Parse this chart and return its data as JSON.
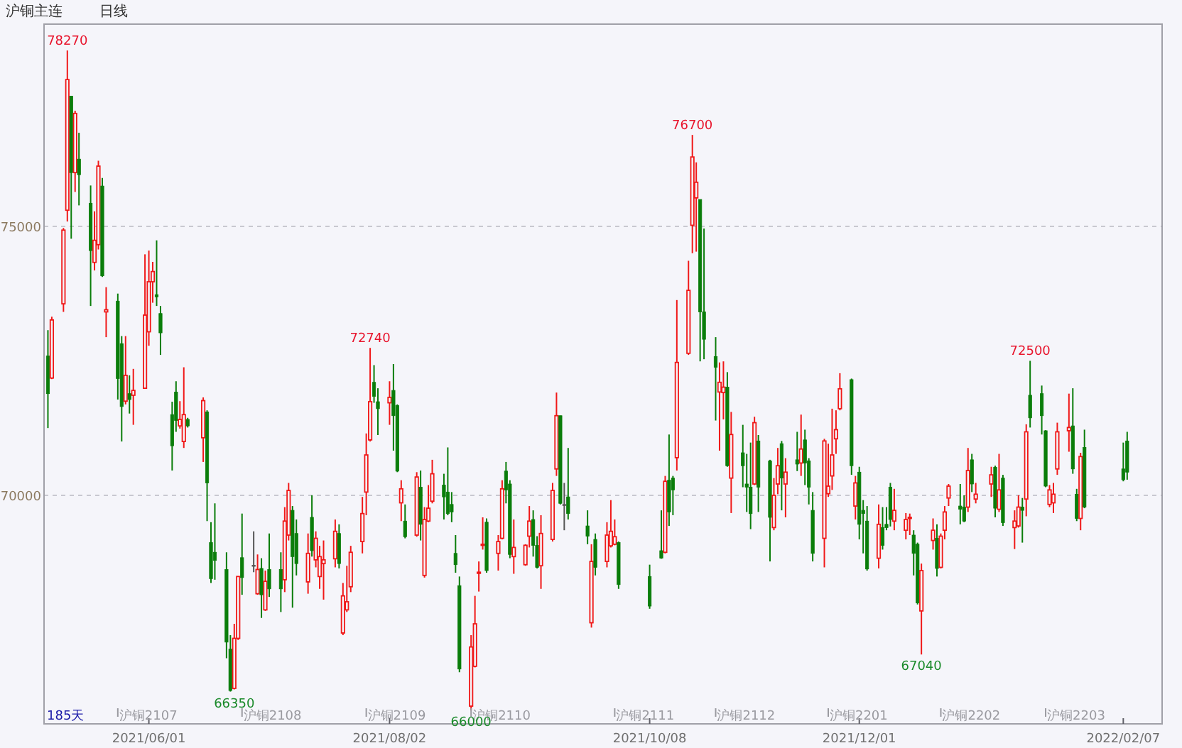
{
  "chart_data": {
    "type": "candlestick",
    "title": "沪铜主连",
    "subtitle": "日线",
    "x": [
      "2021-05-06",
      "2021-05-07",
      "2021-05-10",
      "2021-05-11",
      "2021-05-12",
      "2021-05-13",
      "2021-05-14",
      "2021-05-17",
      "2021-05-18",
      "2021-05-19",
      "2021-05-20",
      "2021-05-21",
      "2021-05-24",
      "2021-05-25",
      "2021-05-26",
      "2021-05-27",
      "2021-05-28",
      "2021-05-31",
      "2021-06-01",
      "2021-06-02",
      "2021-06-03",
      "2021-06-04",
      "2021-06-07",
      "2021-06-08",
      "2021-06-09",
      "2021-06-10",
      "2021-06-11",
      "2021-06-15",
      "2021-06-16",
      "2021-06-17",
      "2021-06-18",
      "2021-06-21",
      "2021-06-22",
      "2021-06-23",
      "2021-06-24",
      "2021-06-25",
      "2021-06-28",
      "2021-06-29",
      "2021-06-30",
      "2021-07-01",
      "2021-07-02",
      "2021-07-05",
      "2021-07-06",
      "2021-07-07",
      "2021-07-08",
      "2021-07-09",
      "2021-07-12",
      "2021-07-13",
      "2021-07-14",
      "2021-07-15",
      "2021-07-16",
      "2021-07-19",
      "2021-07-20",
      "2021-07-21",
      "2021-07-22",
      "2021-07-23",
      "2021-07-26",
      "2021-07-27",
      "2021-07-28",
      "2021-07-29",
      "2021-07-30",
      "2021-08-02",
      "2021-08-03",
      "2021-08-04",
      "2021-08-05",
      "2021-08-06",
      "2021-08-09",
      "2021-08-10",
      "2021-08-11",
      "2021-08-12",
      "2021-08-13",
      "2021-08-16",
      "2021-08-17",
      "2021-08-18",
      "2021-08-19",
      "2021-08-20",
      "2021-08-23",
      "2021-08-24",
      "2021-08-25",
      "2021-08-26",
      "2021-08-27",
      "2021-08-30",
      "2021-08-31",
      "2021-09-01",
      "2021-09-02",
      "2021-09-03",
      "2021-09-06",
      "2021-09-07",
      "2021-09-08",
      "2021-09-09",
      "2021-09-10",
      "2021-09-13",
      "2021-09-14",
      "2021-09-15",
      "2021-09-16",
      "2021-09-17",
      "2021-09-22",
      "2021-09-23",
      "2021-09-24",
      "2021-09-27",
      "2021-09-28",
      "2021-09-29",
      "2021-09-30",
      "2021-10-08",
      "2021-10-11",
      "2021-10-12",
      "2021-10-13",
      "2021-10-14",
      "2021-10-15",
      "2021-10-18",
      "2021-10-19",
      "2021-10-20",
      "2021-10-21",
      "2021-10-22",
      "2021-10-25",
      "2021-10-26",
      "2021-10-27",
      "2021-10-28",
      "2021-10-29",
      "2021-11-01",
      "2021-11-02",
      "2021-11-03",
      "2021-11-04",
      "2021-11-05",
      "2021-11-08",
      "2021-11-09",
      "2021-11-10",
      "2021-11-11",
      "2021-11-12",
      "2021-11-15",
      "2021-11-16",
      "2021-11-17",
      "2021-11-18",
      "2021-11-19",
      "2021-11-22",
      "2021-11-23",
      "2021-11-24",
      "2021-11-25",
      "2021-11-26",
      "2021-11-29",
      "2021-11-30",
      "2021-12-01",
      "2021-12-02",
      "2021-12-03",
      "2021-12-06",
      "2021-12-07",
      "2021-12-08",
      "2021-12-09",
      "2021-12-10",
      "2021-12-13",
      "2021-12-14",
      "2021-12-15",
      "2021-12-16",
      "2021-12-17",
      "2021-12-20",
      "2021-12-21",
      "2021-12-22",
      "2021-12-23",
      "2021-12-24",
      "2021-12-27",
      "2021-12-28",
      "2021-12-29",
      "2021-12-30",
      "2021-12-31",
      "2022-01-04",
      "2022-01-05",
      "2022-01-06",
      "2022-01-07",
      "2022-01-10",
      "2022-01-11",
      "2022-01-12",
      "2022-01-13",
      "2022-01-14",
      "2022-01-17",
      "2022-01-18",
      "2022-01-19",
      "2022-01-20",
      "2022-01-21",
      "2022-01-24",
      "2022-01-25",
      "2022-01-26",
      "2022-01-27",
      "2022-01-28",
      "2022-02-07",
      "2022-02-08"
    ],
    "ohlc": [
      [
        72590,
        73070,
        71250,
        71890
      ],
      [
        72180,
        73320,
        72160,
        73260
      ],
      [
        73560,
        74970,
        73410,
        74930
      ],
      [
        75300,
        78270,
        75090,
        77730
      ],
      [
        77420,
        77420,
        74770,
        76000
      ],
      [
        76000,
        77150,
        75640,
        77100
      ],
      [
        76250,
        76740,
        75390,
        75960
      ],
      [
        75430,
        75760,
        73520,
        74550
      ],
      [
        74330,
        75280,
        74180,
        74740
      ],
      [
        74660,
        76220,
        74570,
        76120
      ],
      [
        75750,
        75900,
        74060,
        74080
      ],
      [
        73410,
        73870,
        72940,
        73450
      ],
      [
        73610,
        73750,
        71780,
        72170
      ],
      [
        72820,
        72960,
        71000,
        71650
      ],
      [
        71750,
        72960,
        71690,
        72230
      ],
      [
        71890,
        72230,
        71520,
        71780
      ],
      [
        71860,
        72350,
        71310,
        71950
      ],
      [
        71990,
        74480,
        71980,
        73350
      ],
      [
        73040,
        74550,
        72780,
        73970
      ],
      [
        73970,
        74340,
        73580,
        74160
      ],
      [
        73730,
        74740,
        73520,
        73690
      ],
      [
        73380,
        73520,
        72610,
        73020
      ],
      [
        71500,
        71740,
        70460,
        70920
      ],
      [
        71920,
        72120,
        71180,
        71390
      ],
      [
        71290,
        71750,
        71240,
        71410
      ],
      [
        71000,
        72380,
        70880,
        71500
      ],
      [
        71410,
        71440,
        71260,
        71290
      ],
      [
        71070,
        71820,
        70620,
        71760
      ],
      [
        71550,
        71580,
        69520,
        70230
      ],
      [
        69120,
        69500,
        68370,
        68450
      ],
      [
        68940,
        69850,
        68430,
        68790
      ],
      [
        68620,
        68940,
        66970,
        67270
      ],
      [
        67140,
        67400,
        66350,
        66370
      ],
      [
        66410,
        67610,
        66390,
        67340
      ],
      [
        67340,
        68490,
        67310,
        68490
      ],
      [
        68840,
        69660,
        68150,
        68470
      ],
      [
        68700,
        69330,
        68570,
        68700
      ],
      [
        68170,
        68900,
        68150,
        68620
      ],
      [
        68640,
        68830,
        67720,
        68150
      ],
      [
        67870,
        68600,
        67850,
        68400
      ],
      [
        68620,
        69290,
        68110,
        68260
      ],
      [
        68620,
        68940,
        67830,
        68260
      ],
      [
        68430,
        69780,
        68200,
        69520
      ],
      [
        69260,
        70230,
        69160,
        70090
      ],
      [
        69720,
        69800,
        67910,
        68860
      ],
      [
        69290,
        69550,
        68510,
        68730
      ],
      [
        68390,
        69290,
        68170,
        68920
      ],
      [
        69590,
        70000,
        68860,
        68970
      ],
      [
        68800,
        69330,
        68660,
        69200
      ],
      [
        68490,
        69060,
        68260,
        68860
      ],
      [
        68730,
        69160,
        68060,
        68800
      ],
      [
        68820,
        69550,
        68660,
        69330
      ],
      [
        69290,
        69460,
        68640,
        68730
      ],
      [
        67440,
        68370,
        67400,
        68130
      ],
      [
        67870,
        68690,
        67830,
        68020
      ],
      [
        68300,
        69060,
        68200,
        68940
      ],
      [
        69140,
        69970,
        68920,
        69660
      ],
      [
        70060,
        71150,
        69630,
        70750
      ],
      [
        71030,
        72740,
        71000,
        71740
      ],
      [
        72100,
        72420,
        71720,
        71840
      ],
      [
        71740,
        71990,
        71120,
        71610
      ],
      [
        71720,
        72120,
        71310,
        71820
      ],
      [
        71950,
        72440,
        70830,
        71480
      ],
      [
        71670,
        71690,
        70430,
        70450
      ],
      [
        69860,
        70280,
        69520,
        70120
      ],
      [
        69520,
        69830,
        69200,
        69230
      ],
      [
        69260,
        70430,
        69230,
        70340
      ],
      [
        70150,
        70460,
        69160,
        69460
      ],
      [
        68510,
        69780,
        68470,
        69550
      ],
      [
        69520,
        70190,
        69500,
        69760
      ],
      [
        69890,
        70660,
        69850,
        70400
      ],
      [
        70190,
        70400,
        69550,
        69970
      ],
      [
        70060,
        70890,
        69630,
        69660
      ],
      [
        69830,
        70060,
        69500,
        69690
      ],
      [
        68920,
        69260,
        68560,
        68710
      ],
      [
        68320,
        68490,
        66710,
        66770
      ],
      [
        66080,
        67400,
        66000,
        67180
      ],
      [
        66820,
        68130,
        66800,
        67610
      ],
      [
        68560,
        68770,
        68210,
        68570
      ],
      [
        69070,
        69590,
        68990,
        69090
      ],
      [
        69500,
        69570,
        68560,
        68600
      ],
      [
        68920,
        69260,
        68600,
        69140
      ],
      [
        69200,
        70280,
        69180,
        70120
      ],
      [
        70450,
        70620,
        69850,
        70100
      ],
      [
        70210,
        70280,
        68830,
        68900
      ],
      [
        68860,
        69550,
        68540,
        69030
      ],
      [
        68710,
        69090,
        68690,
        69070
      ],
      [
        69240,
        69800,
        69030,
        69520
      ],
      [
        69550,
        69720,
        68860,
        69070
      ],
      [
        69070,
        69240,
        68640,
        68660
      ],
      [
        68690,
        69630,
        68260,
        69290
      ],
      [
        69180,
        70230,
        69140,
        70090
      ],
      [
        70490,
        71910,
        70360,
        71480
      ],
      [
        71480,
        71480,
        69830,
        69850
      ],
      [
        69830,
        70230,
        69350,
        69830
      ],
      [
        69970,
        70880,
        69550,
        69660
      ],
      [
        69430,
        69720,
        69090,
        69240
      ],
      [
        67630,
        69090,
        67540,
        68770
      ],
      [
        69180,
        69290,
        68510,
        68660
      ],
      [
        68770,
        69500,
        68660,
        69260
      ],
      [
        69060,
        69910,
        69030,
        69330
      ],
      [
        69090,
        69550,
        69070,
        69230
      ],
      [
        69120,
        69140,
        68260,
        68340
      ],
      [
        68490,
        68710,
        67890,
        67940
      ],
      [
        68970,
        69720,
        68820,
        68830
      ],
      [
        68940,
        70360,
        68920,
        70260
      ],
      [
        70280,
        71130,
        69430,
        69690
      ],
      [
        70320,
        70360,
        69630,
        70100
      ],
      [
        70700,
        73630,
        70460,
        72470
      ],
      [
        72640,
        74360,
        72610,
        73810
      ],
      [
        75020,
        76700,
        74500,
        76290
      ],
      [
        75530,
        76190,
        74530,
        75820
      ],
      [
        75500,
        75500,
        72490,
        73410
      ],
      [
        73410,
        74960,
        72530,
        72900
      ],
      [
        72580,
        72940,
        71390,
        72380
      ],
      [
        71920,
        72470,
        70830,
        72100
      ],
      [
        71910,
        72490,
        71410,
        72010
      ],
      [
        72010,
        72290,
        70530,
        70550
      ],
      [
        70320,
        71550,
        69670,
        71130
      ],
      [
        70790,
        71310,
        70150,
        70550
      ],
      [
        70210,
        70770,
        69690,
        70150
      ],
      [
        70150,
        70980,
        69370,
        69660
      ],
      [
        70210,
        71460,
        70190,
        71350
      ],
      [
        71010,
        71120,
        69690,
        70150
      ],
      [
        70640,
        70660,
        68770,
        69590
      ],
      [
        69400,
        70320,
        69350,
        70000
      ],
      [
        70210,
        70880,
        70020,
        70550
      ],
      [
        70960,
        71010,
        69720,
        70320
      ],
      [
        70210,
        70690,
        69590,
        70430
      ],
      [
        70660,
        71180,
        70450,
        70580
      ],
      [
        70600,
        71500,
        70360,
        70860
      ],
      [
        71030,
        71220,
        70190,
        70600
      ],
      [
        70640,
        70690,
        69830,
        70150
      ],
      [
        69720,
        70060,
        68770,
        68920
      ],
      [
        69200,
        71050,
        68660,
        71010
      ],
      [
        70030,
        70960,
        69970,
        70170
      ],
      [
        70360,
        71610,
        70100,
        70750
      ],
      [
        71050,
        71580,
        70770,
        71220
      ],
      [
        71610,
        72270,
        71580,
        71980
      ],
      [
        72150,
        72170,
        70380,
        70550
      ],
      [
        69800,
        70360,
        69550,
        70230
      ],
      [
        70430,
        70530,
        69180,
        69460
      ],
      [
        69720,
        69910,
        68920,
        69660
      ],
      [
        69520,
        69800,
        68600,
        68630
      ],
      [
        68830,
        69830,
        68640,
        69460
      ],
      [
        69400,
        69780,
        68990,
        69070
      ],
      [
        69460,
        69780,
        69350,
        69400
      ],
      [
        70150,
        70230,
        69420,
        69550
      ],
      [
        69520,
        70120,
        69350,
        69720
      ],
      [
        69350,
        69670,
        69180,
        69550
      ],
      [
        69570,
        69660,
        69260,
        69590
      ],
      [
        69260,
        69350,
        68510,
        68920
      ],
      [
        69090,
        69120,
        67970,
        68000
      ],
      [
        67850,
        68730,
        67040,
        68600
      ],
      [
        69160,
        69570,
        68990,
        69350
      ],
      [
        69200,
        69460,
        68490,
        68640
      ],
      [
        68660,
        69290,
        68640,
        69240
      ],
      [
        69350,
        69800,
        69180,
        69690
      ],
      [
        69950,
        70210,
        69800,
        70170
      ],
      [
        69800,
        70210,
        69460,
        69740
      ],
      [
        69780,
        70000,
        69500,
        69520
      ],
      [
        69780,
        70880,
        69690,
        70460
      ],
      [
        70660,
        70770,
        70060,
        70210
      ],
      [
        69930,
        70230,
        69850,
        70020
      ],
      [
        70210,
        70530,
        69970,
        70380
      ],
      [
        70520,
        70550,
        69590,
        69760
      ],
      [
        69740,
        70770,
        69690,
        70100
      ],
      [
        70320,
        70380,
        69430,
        69490
      ],
      [
        69400,
        69720,
        69000,
        69520
      ],
      [
        69430,
        70000,
        69400,
        69780
      ],
      [
        69780,
        69950,
        69120,
        69720
      ],
      [
        69930,
        71320,
        69610,
        71180
      ],
      [
        71860,
        72500,
        71260,
        71440
      ],
      [
        71890,
        72040,
        71130,
        71480
      ],
      [
        71200,
        71210,
        70150,
        70170
      ],
      [
        69830,
        70190,
        69780,
        70100
      ],
      [
        69860,
        70230,
        69670,
        70020
      ],
      [
        70490,
        71350,
        70380,
        71180
      ],
      [
        71200,
        71890,
        70810,
        71260
      ],
      [
        71290,
        71990,
        70400,
        70490
      ],
      [
        70020,
        70120,
        69520,
        69570
      ],
      [
        69570,
        70790,
        69350,
        70720
      ],
      [
        70890,
        71220,
        69760,
        69780
      ],
      [
        70490,
        70980,
        70260,
        70290
      ],
      [
        71010,
        71180,
        70290,
        70430
      ]
    ],
    "colors": [
      "#0a7d0a",
      "#f01818",
      "#f01818",
      "#f01818",
      "#0a7d0a",
      "#f01818",
      "#0a7d0a",
      "#0a7d0a",
      "#f01818",
      "#f01818",
      "#0a7d0a",
      "#f01818",
      "#0a7d0a",
      "#0a7d0a",
      "#f01818",
      "#0a7d0a",
      "#f01818",
      "#f01818",
      "#f01818",
      "#f01818",
      "#0a7d0a",
      "#0a7d0a",
      "#0a7d0a",
      "#0a7d0a",
      "#f01818",
      "#f01818",
      "#0a7d0a",
      "#f01818",
      "#0a7d0a",
      "#0a7d0a",
      "#0a7d0a",
      "#0a7d0a",
      "#0a7d0a",
      "#f01818",
      "#f01818",
      "#0a7d0a",
      "#555555",
      "#f01818",
      "#0a7d0a",
      "#f01818",
      "#0a7d0a",
      "#0a7d0a",
      "#f01818",
      "#f01818",
      "#0a7d0a",
      "#0a7d0a",
      "#f01818",
      "#0a7d0a",
      "#f01818",
      "#f01818",
      "#f01818",
      "#f01818",
      "#0a7d0a",
      "#f01818",
      "#f01818",
      "#f01818",
      "#f01818",
      "#f01818",
      "#f01818",
      "#0a7d0a",
      "#0a7d0a",
      "#f01818",
      "#0a7d0a",
      "#0a7d0a",
      "#f01818",
      "#0a7d0a",
      "#f01818",
      "#0a7d0a",
      "#f01818",
      "#f01818",
      "#f01818",
      "#0a7d0a",
      "#0a7d0a",
      "#0a7d0a",
      "#0a7d0a",
      "#0a7d0a",
      "#f01818",
      "#f01818",
      "#f01818",
      "#f01818",
      "#0a7d0a",
      "#f01818",
      "#f01818",
      "#0a7d0a",
      "#0a7d0a",
      "#f01818",
      "#f01818",
      "#f01818",
      "#0a7d0a",
      "#0a7d0a",
      "#f01818",
      "#f01818",
      "#f01818",
      "#0a7d0a",
      "#555555",
      "#0a7d0a",
      "#0a7d0a",
      "#f01818",
      "#0a7d0a",
      "#f01818",
      "#f01818",
      "#f01818",
      "#0a7d0a",
      "#0a7d0a",
      "#0a7d0a",
      "#f01818",
      "#0a7d0a",
      "#0a7d0a",
      "#f01818",
      "#f01818",
      "#f01818",
      "#f01818",
      "#0a7d0a",
      "#0a7d0a",
      "#0a7d0a",
      "#f01818",
      "#f01818",
      "#0a7d0a",
      "#f01818",
      "#0a7d0a",
      "#0a7d0a",
      "#0a7d0a",
      "#f01818",
      "#0a7d0a",
      "#0a7d0a",
      "#f01818",
      "#f01818",
      "#0a7d0a",
      "#f01818",
      "#0a7d0a",
      "#f01818",
      "#0a7d0a",
      "#0a7d0a",
      "#0a7d0a",
      "#f01818",
      "#f01818",
      "#f01818",
      "#f01818",
      "#f01818",
      "#0a7d0a",
      "#f01818",
      "#0a7d0a",
      "#0a7d0a",
      "#0a7d0a",
      "#f01818",
      "#0a7d0a",
      "#0a7d0a",
      "#0a7d0a",
      "#f01818",
      "#f01818",
      "#f01818",
      "#0a7d0a",
      "#0a7d0a",
      "#f01818",
      "#f01818",
      "#0a7d0a",
      "#f01818",
      "#f01818",
      "#f01818",
      "#0a7d0a",
      "#0a7d0a",
      "#f01818",
      "#0a7d0a",
      "#f01818",
      "#f01818",
      "#0a7d0a",
      "#f01818",
      "#0a7d0a",
      "#f01818",
      "#f01818",
      "#0a7d0a",
      "#f01818",
      "#0a7d0a",
      "#0a7d0a",
      "#0a7d0a",
      "#f01818",
      "#f01818",
      "#f01818",
      "#f01818",
      "#0a7d0a",
      "#0a7d0a",
      "#f01818",
      "#0a7d0a",
      "#0a7d0a",
      "#0a7d0a"
    ],
    "ylim": [
      65750,
      78760
    ],
    "yticks": [
      70000,
      75000
    ],
    "grid": "y",
    "xlim": [
      "2021-05-05",
      "2022-02-17"
    ],
    "xticks": [
      {
        "value": "2021-06-01",
        "label": "2021/06/01"
      },
      {
        "value": "2021-08-02",
        "label": "2021/08/02"
      },
      {
        "value": "2021-10-08",
        "label": "2021/10/08"
      },
      {
        "value": "2021-12-01",
        "label": "2021/12/01"
      },
      {
        "value": "2022-02-07",
        "label": "2022/02/07"
      }
    ],
    "annotations": [
      {
        "text": "78270",
        "x": "2021-05-11",
        "y": 78270
      },
      {
        "text": "72740",
        "x": "2021-07-28",
        "y": 72740
      },
      {
        "text": "76700",
        "x": "2021-10-19",
        "y": 76700
      },
      {
        "text": "72500",
        "x": "2022-01-14",
        "y": 72500
      },
      {
        "text": "66350",
        "x": "2021-06-23",
        "y": 66350
      },
      {
        "text": "66000",
        "x": "2021-08-23",
        "y": 66000
      },
      {
        "text": "67040",
        "x": "2021-12-17",
        "y": 67040
      },
      "185天"
    ],
    "ref_lines": [
      {
        "axis": "x",
        "value": "2021-05-24",
        "label": "沪铜2107"
      },
      {
        "axis": "x",
        "value": "2021-06-25",
        "label": "沪铜2108"
      },
      {
        "axis": "x",
        "value": "2021-07-27",
        "label": "沪铜2109"
      },
      {
        "axis": "x",
        "value": "2021-08-23",
        "label": "沪铜2110"
      },
      {
        "axis": "x",
        "value": "2021-09-29",
        "label": "沪铜2111"
      },
      {
        "axis": "x",
        "value": "2021-10-25",
        "label": "沪铜2112"
      },
      {
        "axis": "x",
        "value": "2021-11-23",
        "label": "沪铜2201"
      },
      {
        "axis": "x",
        "value": "2021-12-22",
        "label": "沪铜2202"
      },
      {
        "axis": "x",
        "value": "2022-01-18",
        "label": "沪铜2203"
      }
    ]
  }
}
